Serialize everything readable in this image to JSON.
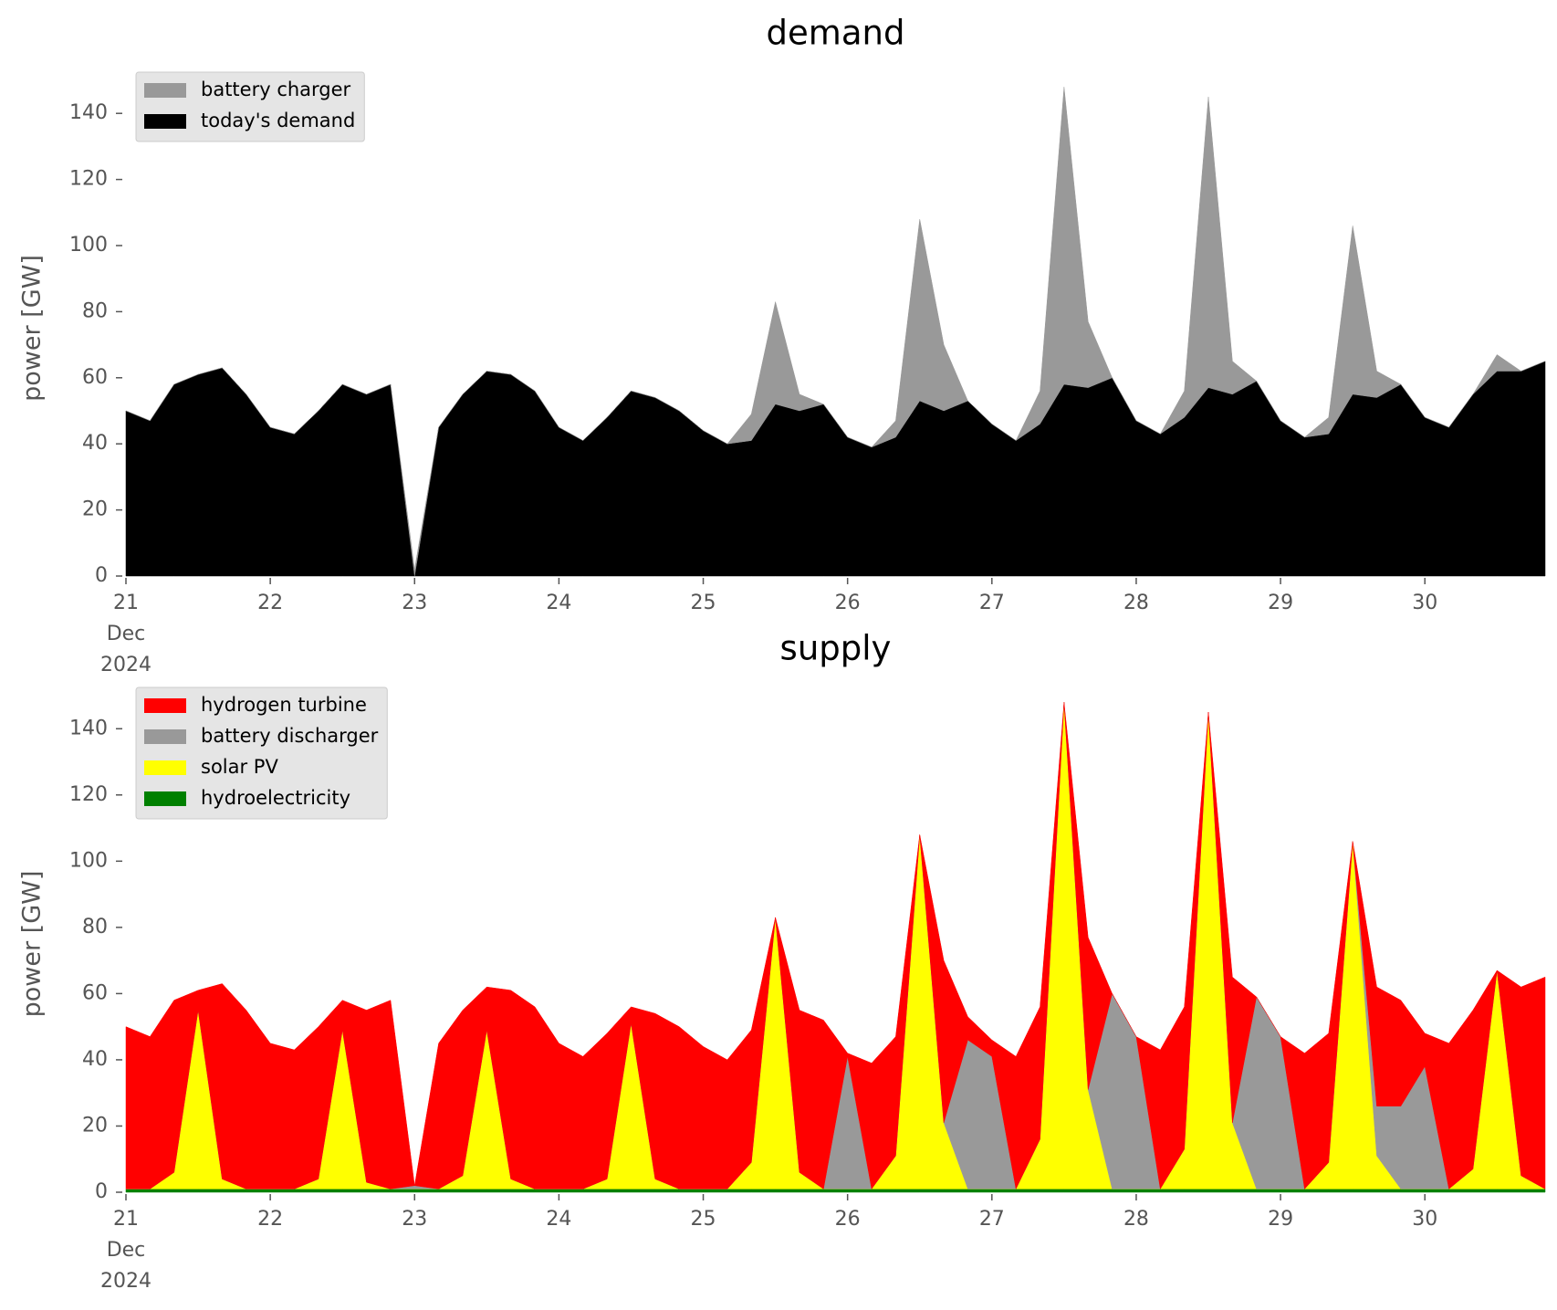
{
  "chart_data": [
    {
      "type": "stacked-area",
      "title": "demand",
      "y_label": "power [GW]",
      "legend": "upper left",
      "x": [
        "2024-12-21T00:00",
        "2024-12-21T04:00",
        "2024-12-21T08:00",
        "2024-12-21T12:00",
        "2024-12-21T16:00",
        "2024-12-21T20:00",
        "2024-12-22T00:00",
        "2024-12-22T04:00",
        "2024-12-22T08:00",
        "2024-12-22T12:00",
        "2024-12-22T16:00",
        "2024-12-22T20:00",
        "2024-12-23T00:00",
        "2024-12-23T04:00",
        "2024-12-23T08:00",
        "2024-12-23T12:00",
        "2024-12-23T16:00",
        "2024-12-23T20:00",
        "2024-12-24T00:00",
        "2024-12-24T04:00",
        "2024-12-24T08:00",
        "2024-12-24T12:00",
        "2024-12-24T16:00",
        "2024-12-24T20:00",
        "2024-12-25T00:00",
        "2024-12-25T04:00",
        "2024-12-25T08:00",
        "2024-12-25T12:00",
        "2024-12-25T16:00",
        "2024-12-25T20:00",
        "2024-12-26T00:00",
        "2024-12-26T04:00",
        "2024-12-26T08:00",
        "2024-12-26T12:00",
        "2024-12-26T16:00",
        "2024-12-26T20:00",
        "2024-12-27T00:00",
        "2024-12-27T04:00",
        "2024-12-27T08:00",
        "2024-12-27T12:00",
        "2024-12-27T16:00",
        "2024-12-27T20:00",
        "2024-12-28T00:00",
        "2024-12-28T04:00",
        "2024-12-28T08:00",
        "2024-12-28T12:00",
        "2024-12-28T16:00",
        "2024-12-28T20:00",
        "2024-12-29T00:00",
        "2024-12-29T04:00",
        "2024-12-29T08:00",
        "2024-12-29T12:00",
        "2024-12-29T16:00",
        "2024-12-29T20:00",
        "2024-12-30T00:00",
        "2024-12-30T04:00",
        "2024-12-30T08:00",
        "2024-12-30T12:00",
        "2024-12-30T16:00",
        "2024-12-30T20:00"
      ],
      "series": [
        {
          "name": "today's demand",
          "color": "#000000",
          "values": [
            50,
            47,
            58,
            61,
            63,
            55,
            45,
            43,
            50,
            58,
            55,
            58,
            0,
            45,
            55,
            62,
            61,
            56,
            45,
            41,
            48,
            56,
            54,
            50,
            44,
            40,
            41,
            52,
            50,
            52,
            42,
            39,
            42,
            53,
            50,
            53,
            46,
            41,
            46,
            58,
            57,
            60,
            47,
            43,
            48,
            57,
            55,
            59,
            47,
            42,
            43,
            55,
            54,
            58,
            48,
            45,
            55,
            62,
            62,
            65
          ]
        },
        {
          "name": "battery charger",
          "color": "#999999",
          "values": [
            0,
            0,
            0,
            0,
            0,
            0,
            0,
            0,
            0,
            0,
            0,
            0,
            2,
            0,
            0,
            0,
            0,
            0,
            0,
            0,
            0,
            0,
            0,
            0,
            0,
            0,
            8,
            31,
            5,
            0,
            0,
            0,
            5,
            55,
            20,
            0,
            0,
            0,
            10,
            90,
            20,
            0,
            0,
            0,
            8,
            88,
            10,
            0,
            0,
            0,
            5,
            51,
            8,
            0,
            0,
            0,
            0,
            5,
            0,
            0
          ]
        }
      ],
      "xlim": [
        "2024-12-21T00:00",
        "2024-12-30T20:00"
      ],
      "xticks": [
        {
          "value": "2024-12-21T00:00",
          "label": "21\nDec\n2024"
        },
        {
          "value": "2024-12-22T00:00",
          "label": "22"
        },
        {
          "value": "2024-12-23T00:00",
          "label": "23"
        },
        {
          "value": "2024-12-24T00:00",
          "label": "24"
        },
        {
          "value": "2024-12-25T00:00",
          "label": "25"
        },
        {
          "value": "2024-12-26T00:00",
          "label": "26"
        },
        {
          "value": "2024-12-27T00:00",
          "label": "27"
        },
        {
          "value": "2024-12-28T00:00",
          "label": "28"
        },
        {
          "value": "2024-12-29T00:00",
          "label": "29"
        },
        {
          "value": "2024-12-30T00:00",
          "label": "30"
        }
      ],
      "ylim": [
        0,
        150
      ],
      "yticks": [
        0,
        20,
        40,
        60,
        80,
        100,
        120,
        140
      ]
    },
    {
      "type": "stacked-area",
      "title": "supply",
      "y_label": "power [GW]",
      "legend": "upper left",
      "x": [
        "2024-12-21T00:00",
        "2024-12-21T04:00",
        "2024-12-21T08:00",
        "2024-12-21T12:00",
        "2024-12-21T16:00",
        "2024-12-21T20:00",
        "2024-12-22T00:00",
        "2024-12-22T04:00",
        "2024-12-22T08:00",
        "2024-12-22T12:00",
        "2024-12-22T16:00",
        "2024-12-22T20:00",
        "2024-12-23T00:00",
        "2024-12-23T04:00",
        "2024-12-23T08:00",
        "2024-12-23T12:00",
        "2024-12-23T16:00",
        "2024-12-23T20:00",
        "2024-12-24T00:00",
        "2024-12-24T04:00",
        "2024-12-24T08:00",
        "2024-12-24T12:00",
        "2024-12-24T16:00",
        "2024-12-24T20:00",
        "2024-12-25T00:00",
        "2024-12-25T04:00",
        "2024-12-25T08:00",
        "2024-12-25T12:00",
        "2024-12-25T16:00",
        "2024-12-25T20:00",
        "2024-12-26T00:00",
        "2024-12-26T04:00",
        "2024-12-26T08:00",
        "2024-12-26T12:00",
        "2024-12-26T16:00",
        "2024-12-26T20:00",
        "2024-12-27T00:00",
        "2024-12-27T04:00",
        "2024-12-27T08:00",
        "2024-12-27T12:00",
        "2024-12-27T16:00",
        "2024-12-27T20:00",
        "2024-12-28T00:00",
        "2024-12-28T04:00",
        "2024-12-28T08:00",
        "2024-12-28T12:00",
        "2024-12-28T16:00",
        "2024-12-28T20:00",
        "2024-12-29T00:00",
        "2024-12-29T04:00",
        "2024-12-29T08:00",
        "2024-12-29T12:00",
        "2024-12-29T16:00",
        "2024-12-29T20:00",
        "2024-12-30T00:00",
        "2024-12-30T04:00",
        "2024-12-30T08:00",
        "2024-12-30T12:00",
        "2024-12-30T16:00",
        "2024-12-30T20:00"
      ],
      "series": [
        {
          "name": "hydroelectricity",
          "color": "#008000",
          "values": [
            1,
            1,
            1,
            1,
            1,
            1,
            1,
            1,
            1,
            1,
            1,
            1,
            1,
            1,
            1,
            1,
            1,
            1,
            1,
            1,
            1,
            1,
            1,
            1,
            1,
            1,
            1,
            1,
            1,
            1,
            1,
            1,
            1,
            1,
            1,
            1,
            1,
            1,
            1,
            1,
            1,
            1,
            1,
            1,
            1,
            1,
            1,
            1,
            1,
            1,
            1,
            1,
            1,
            1,
            1,
            1,
            1,
            1,
            1,
            1
          ]
        },
        {
          "name": "solar PV",
          "color": "#ffff00",
          "values": [
            0,
            0,
            5,
            54,
            3,
            0,
            0,
            0,
            3,
            48,
            2,
            0,
            0,
            0,
            4,
            48,
            3,
            0,
            0,
            0,
            3,
            50,
            3,
            0,
            0,
            0,
            8,
            82,
            5,
            0,
            0,
            0,
            10,
            107,
            20,
            0,
            0,
            0,
            15,
            147,
            30,
            0,
            0,
            0,
            12,
            144,
            20,
            0,
            0,
            0,
            8,
            105,
            10,
            0,
            0,
            0,
            6,
            66,
            4,
            0
          ]
        },
        {
          "name": "battery discharger",
          "color": "#999999",
          "values": [
            0,
            0,
            0,
            0,
            0,
            0,
            0,
            0,
            0,
            0,
            0,
            0,
            1,
            0,
            0,
            0,
            0,
            0,
            0,
            0,
            0,
            0,
            0,
            0,
            0,
            0,
            0,
            0,
            0,
            0,
            40,
            0,
            0,
            0,
            0,
            45,
            40,
            0,
            0,
            0,
            0,
            59,
            46,
            0,
            0,
            0,
            0,
            58,
            46,
            0,
            0,
            0,
            15,
            25,
            37,
            0,
            0,
            0,
            0,
            0
          ]
        },
        {
          "name": "hydrogen turbine",
          "color": "#ff0000",
          "values": [
            49,
            46,
            52,
            6,
            59,
            54,
            44,
            42,
            46,
            9,
            52,
            57,
            0,
            44,
            50,
            13,
            57,
            55,
            44,
            40,
            44,
            5,
            50,
            49,
            43,
            39,
            40,
            0,
            49,
            51,
            1,
            38,
            36,
            0,
            49,
            7,
            5,
            40,
            40,
            0,
            46,
            0,
            0,
            42,
            43,
            0,
            44,
            0,
            0,
            41,
            39,
            0,
            36,
            32,
            10,
            44,
            48,
            0,
            57,
            64
          ]
        }
      ],
      "xlim": [
        "2024-12-21T00:00",
        "2024-12-30T20:00"
      ],
      "xticks": [
        {
          "value": "2024-12-21T00:00",
          "label": "21\nDec\n2024"
        },
        {
          "value": "2024-12-22T00:00",
          "label": "22"
        },
        {
          "value": "2024-12-23T00:00",
          "label": "23"
        },
        {
          "value": "2024-12-24T00:00",
          "label": "24"
        },
        {
          "value": "2024-12-25T00:00",
          "label": "25"
        },
        {
          "value": "2024-12-26T00:00",
          "label": "26"
        },
        {
          "value": "2024-12-27T00:00",
          "label": "27"
        },
        {
          "value": "2024-12-28T00:00",
          "label": "28"
        },
        {
          "value": "2024-12-29T00:00",
          "label": "29"
        },
        {
          "value": "2024-12-30T00:00",
          "label": "30"
        }
      ],
      "ylim": [
        0,
        150
      ],
      "yticks": [
        0,
        20,
        40,
        60,
        80,
        100,
        120,
        140
      ]
    }
  ]
}
